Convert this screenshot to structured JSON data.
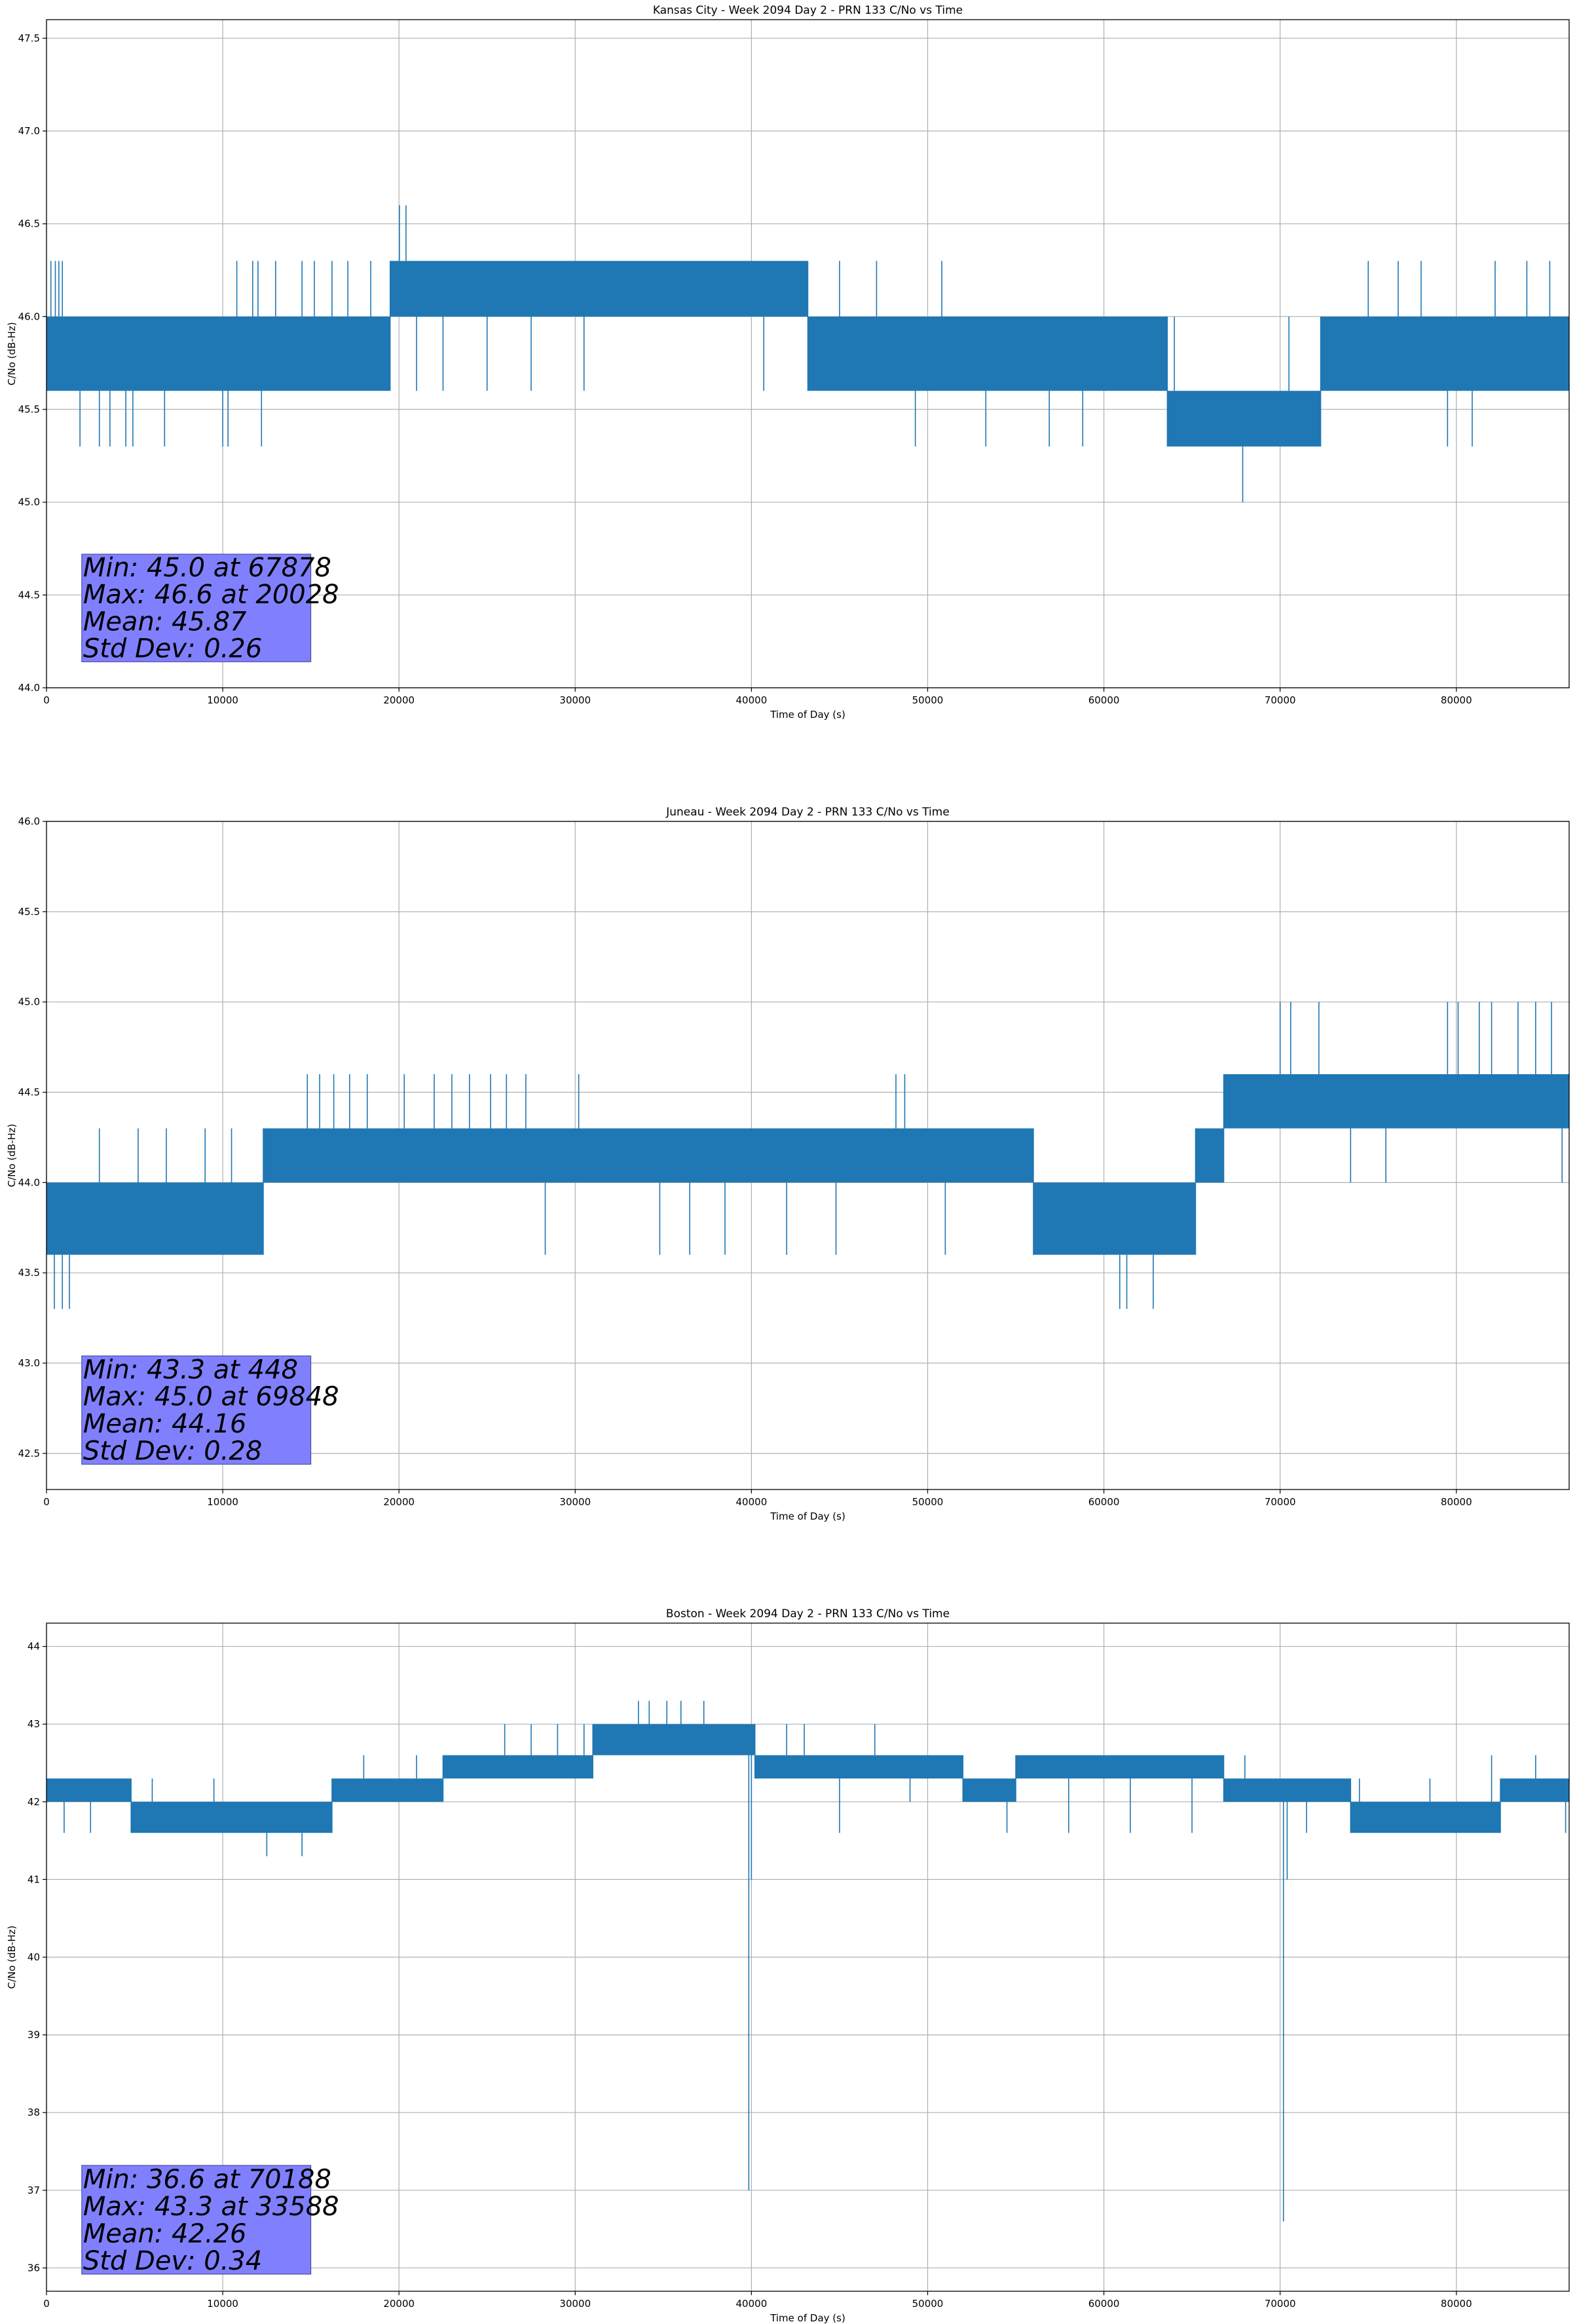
{
  "colors": {
    "series": "#1f77b4",
    "grid": "#b0b0b0",
    "stats_box": "#8080ff",
    "stats_box_edge": "#3b3b8f"
  },
  "chart_data": [
    {
      "type": "line",
      "title": "Kansas City - Week 2094 Day 2 - PRN 133 C/No vs Time",
      "xlabel": "Time of Day (s)",
      "ylabel": "C/No (dB-Hz)",
      "xlim": [
        0,
        86400
      ],
      "ylim": [
        44.0,
        47.6
      ],
      "xticks": [
        0,
        10000,
        20000,
        30000,
        40000,
        50000,
        60000,
        70000,
        80000
      ],
      "yticks": [
        44.0,
        44.5,
        45.0,
        45.5,
        46.0,
        46.5,
        47.0,
        47.5
      ],
      "ytick_decimals": 1,
      "grid": true,
      "series": [
        {
          "name": "C/No",
          "bands": [
            {
              "x0": 0,
              "x1": 19500,
              "lo": 45.6,
              "hi": 46.0
            },
            {
              "x0": 19500,
              "x1": 43200,
              "lo": 46.0,
              "hi": 46.3
            },
            {
              "x0": 43200,
              "x1": 63600,
              "lo": 45.6,
              "hi": 46.0
            },
            {
              "x0": 63600,
              "x1": 72300,
              "lo": 45.3,
              "hi": 45.6
            },
            {
              "x0": 72300,
              "x1": 86400,
              "lo": 45.6,
              "hi": 46.0
            }
          ],
          "spikes": [
            [
              250,
              46.3
            ],
            [
              500,
              46.3
            ],
            [
              700,
              46.3
            ],
            [
              900,
              46.3
            ],
            [
              1900,
              45.3
            ],
            [
              3000,
              45.3
            ],
            [
              3600,
              45.3
            ],
            [
              4500,
              45.3
            ],
            [
              4900,
              45.3
            ],
            [
              6700,
              45.3
            ],
            [
              10000,
              45.3
            ],
            [
              10300,
              45.3
            ],
            [
              10800,
              46.3
            ],
            [
              11700,
              46.3
            ],
            [
              12000,
              46.3
            ],
            [
              12200,
              45.3
            ],
            [
              13000,
              46.3
            ],
            [
              14500,
              46.3
            ],
            [
              15200,
              46.3
            ],
            [
              16200,
              46.3
            ],
            [
              17100,
              46.3
            ],
            [
              18400,
              46.3
            ],
            [
              20028,
              46.6
            ],
            [
              20400,
              46.6
            ],
            [
              21000,
              45.6
            ],
            [
              22500,
              45.6
            ],
            [
              25000,
              45.6
            ],
            [
              27500,
              45.6
            ],
            [
              30500,
              45.6
            ],
            [
              40700,
              45.6
            ],
            [
              45000,
              46.3
            ],
            [
              47100,
              46.3
            ],
            [
              49300,
              45.3
            ],
            [
              50800,
              46.3
            ],
            [
              53300,
              45.3
            ],
            [
              56900,
              45.3
            ],
            [
              58800,
              45.3
            ],
            [
              64000,
              46.0
            ],
            [
              67878,
              45.0
            ],
            [
              70500,
              46.0
            ],
            [
              73800,
              46.0
            ],
            [
              75000,
              46.3
            ],
            [
              76700,
              46.3
            ],
            [
              78000,
              46.3
            ],
            [
              79500,
              45.3
            ],
            [
              80900,
              45.3
            ],
            [
              82200,
              46.3
            ],
            [
              84000,
              46.3
            ],
            [
              85300,
              46.3
            ]
          ]
        }
      ],
      "stats": {
        "lines": [
          "Min: 45.0 at 67878",
          "Max: 46.6 at 20028",
          "Mean: 45.87",
          "Std Dev: 0.26"
        ],
        "box_x0": 2000,
        "box_x1": 15000,
        "box_lo": 44.14,
        "box_hi": 44.72
      }
    },
    {
      "type": "line",
      "title": "Juneau - Week 2094 Day 2 - PRN 133 C/No vs Time",
      "xlabel": "Time of Day (s)",
      "ylabel": "C/No (dB-Hz)",
      "xlim": [
        0,
        86400
      ],
      "ylim": [
        42.3,
        46.0
      ],
      "xticks": [
        0,
        10000,
        20000,
        30000,
        40000,
        50000,
        60000,
        70000,
        80000
      ],
      "yticks": [
        42.5,
        43.0,
        43.5,
        44.0,
        44.5,
        45.0,
        45.5,
        46.0
      ],
      "ytick_decimals": 1,
      "grid": true,
      "series": [
        {
          "name": "C/No",
          "bands": [
            {
              "x0": 0,
              "x1": 12300,
              "lo": 43.6,
              "hi": 44.0
            },
            {
              "x0": 12300,
              "x1": 56000,
              "lo": 44.0,
              "hi": 44.3
            },
            {
              "x0": 56000,
              "x1": 65200,
              "lo": 43.6,
              "hi": 44.0
            },
            {
              "x0": 65200,
              "x1": 66800,
              "lo": 44.0,
              "hi": 44.3
            },
            {
              "x0": 66800,
              "x1": 86400,
              "lo": 44.3,
              "hi": 44.6
            }
          ],
          "spikes": [
            [
              448,
              43.3
            ],
            [
              900,
              43.3
            ],
            [
              1300,
              43.3
            ],
            [
              3000,
              44.3
            ],
            [
              5200,
              44.3
            ],
            [
              6800,
              44.3
            ],
            [
              9000,
              44.3
            ],
            [
              10500,
              44.3
            ],
            [
              11500,
              43.6
            ],
            [
              14800,
              44.6
            ],
            [
              15500,
              44.6
            ],
            [
              16300,
              44.6
            ],
            [
              17200,
              44.6
            ],
            [
              18200,
              44.6
            ],
            [
              20300,
              44.6
            ],
            [
              22000,
              44.6
            ],
            [
              23000,
              44.6
            ],
            [
              24000,
              44.6
            ],
            [
              25200,
              44.6
            ],
            [
              26100,
              44.6
            ],
            [
              27200,
              44.6
            ],
            [
              28300,
              43.6
            ],
            [
              30200,
              44.6
            ],
            [
              34800,
              43.6
            ],
            [
              36500,
              43.6
            ],
            [
              38500,
              43.6
            ],
            [
              42000,
              43.6
            ],
            [
              44800,
              43.6
            ],
            [
              48200,
              44.6
            ],
            [
              48700,
              44.6
            ],
            [
              51000,
              43.6
            ],
            [
              60900,
              43.3
            ],
            [
              61300,
              43.3
            ],
            [
              62800,
              43.3
            ],
            [
              70000,
              45.0
            ],
            [
              70600,
              45.0
            ],
            [
              72200,
              45.0
            ],
            [
              74000,
              44.0
            ],
            [
              76000,
              44.0
            ],
            [
              78500,
              44.6
            ],
            [
              79500,
              45.0
            ],
            [
              80100,
              45.0
            ],
            [
              81300,
              45.0
            ],
            [
              82000,
              45.0
            ],
            [
              83500,
              45.0
            ],
            [
              84500,
              45.0
            ],
            [
              85400,
              45.0
            ],
            [
              86000,
              44.0
            ]
          ]
        }
      ],
      "stats": {
        "lines": [
          "Min: 43.3 at 448",
          "Max: 45.0 at 69848",
          "Mean: 44.16",
          "Std Dev: 0.28"
        ],
        "box_x0": 2000,
        "box_x1": 15000,
        "box_lo": 42.44,
        "box_hi": 43.04
      }
    },
    {
      "type": "line",
      "title": "Boston - Week 2094 Day 2 - PRN 133 C/No vs Time",
      "xlabel": "Time of Day (s)",
      "ylabel": "C/No (dB-Hz)",
      "xlim": [
        0,
        86400
      ],
      "ylim": [
        35.7,
        44.3
      ],
      "xticks": [
        0,
        10000,
        20000,
        30000,
        40000,
        50000,
        60000,
        70000,
        80000
      ],
      "yticks": [
        36,
        37,
        38,
        39,
        40,
        41,
        42,
        43,
        44
      ],
      "ytick_decimals": 0,
      "grid": true,
      "series": [
        {
          "name": "C/No",
          "bands": [
            {
              "x0": 0,
              "x1": 4800,
              "lo": 42.0,
              "hi": 42.3
            },
            {
              "x0": 4800,
              "x1": 16200,
              "lo": 41.6,
              "hi": 42.0
            },
            {
              "x0": 16200,
              "x1": 22500,
              "lo": 42.0,
              "hi": 42.3
            },
            {
              "x0": 22500,
              "x1": 31000,
              "lo": 42.3,
              "hi": 42.6
            },
            {
              "x0": 31000,
              "x1": 40200,
              "lo": 42.6,
              "hi": 43.0
            },
            {
              "x0": 40200,
              "x1": 52000,
              "lo": 42.3,
              "hi": 42.6
            },
            {
              "x0": 52000,
              "x1": 55000,
              "lo": 42.0,
              "hi": 42.3
            },
            {
              "x0": 55000,
              "x1": 66800,
              "lo": 42.3,
              "hi": 42.6
            },
            {
              "x0": 66800,
              "x1": 74000,
              "lo": 42.0,
              "hi": 42.3
            },
            {
              "x0": 74000,
              "x1": 82500,
              "lo": 41.6,
              "hi": 42.0
            },
            {
              "x0": 82500,
              "x1": 86400,
              "lo": 42.0,
              "hi": 42.3
            }
          ],
          "spikes": [
            [
              1000,
              41.6
            ],
            [
              2500,
              41.6
            ],
            [
              6000,
              42.3
            ],
            [
              9500,
              42.3
            ],
            [
              12500,
              41.3
            ],
            [
              14500,
              41.3
            ],
            [
              18000,
              42.6
            ],
            [
              21000,
              42.6
            ],
            [
              24000,
              42.6
            ],
            [
              26000,
              43.0
            ],
            [
              27500,
              43.0
            ],
            [
              29000,
              43.0
            ],
            [
              30500,
              43.0
            ],
            [
              33588,
              43.3
            ],
            [
              34200,
              43.3
            ],
            [
              35200,
              43.3
            ],
            [
              36000,
              43.3
            ],
            [
              37300,
              43.3
            ],
            [
              39850,
              37.0
            ],
            [
              40000,
              41.0
            ],
            [
              42000,
              43.0
            ],
            [
              43000,
              43.0
            ],
            [
              45000,
              41.6
            ],
            [
              47000,
              43.0
            ],
            [
              49000,
              42.0
            ],
            [
              52000,
              42.6
            ],
            [
              54500,
              41.6
            ],
            [
              58000,
              41.6
            ],
            [
              61500,
              41.6
            ],
            [
              65000,
              41.6
            ],
            [
              68000,
              42.6
            ],
            [
              70188,
              36.6
            ],
            [
              70400,
              41.0
            ],
            [
              71500,
              41.6
            ],
            [
              74500,
              42.3
            ],
            [
              78500,
              42.3
            ],
            [
              82000,
              42.6
            ],
            [
              84500,
              42.6
            ],
            [
              86200,
              41.6
            ]
          ]
        }
      ],
      "stats": {
        "lines": [
          "Min: 36.6 at 70188",
          "Max: 43.3 at 33588",
          "Mean: 42.26",
          "Std Dev: 0.34"
        ],
        "box_x0": 2000,
        "box_x1": 15000,
        "box_lo": 35.92,
        "box_hi": 37.32
      }
    }
  ]
}
